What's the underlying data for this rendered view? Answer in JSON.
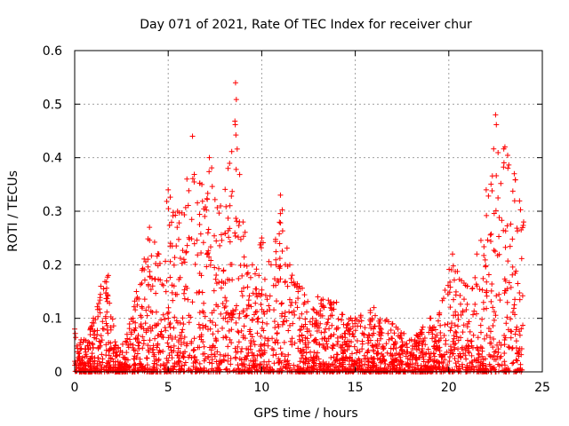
{
  "chart_data": {
    "type": "scatter",
    "title": "Day 071 of 2021, Rate Of TEC Index for receiver chur",
    "xlabel": "GPS time / hours",
    "ylabel": "ROTI / TECUs",
    "xlim": [
      0,
      25
    ],
    "ylim": [
      0,
      0.6
    ],
    "xticks": [
      0,
      5,
      10,
      15,
      20,
      25
    ],
    "yticks": [
      0,
      0.1,
      0.2,
      0.3,
      0.4,
      0.5,
      0.6
    ],
    "xtick_labels": [
      "0",
      "5",
      "10",
      "15",
      "20",
      "25"
    ],
    "ytick_labels": [
      "0",
      "0.1",
      "0.2",
      "0.3",
      "0.4",
      "0.5",
      "0.6"
    ],
    "grid": true,
    "marker": "+",
    "color": "#ff0000",
    "x_range_of_data": [
      0,
      24
    ],
    "envelope": [
      {
        "x": 0.0,
        "max": 0.08
      },
      {
        "x": 0.5,
        "max": 0.06
      },
      {
        "x": 1.0,
        "max": 0.1
      },
      {
        "x": 1.4,
        "max": 0.16
      },
      {
        "x": 1.8,
        "max": 0.18
      },
      {
        "x": 2.2,
        "max": 0.05
      },
      {
        "x": 2.8,
        "max": 0.07
      },
      {
        "x": 3.3,
        "max": 0.15
      },
      {
        "x": 3.6,
        "max": 0.19
      },
      {
        "x": 4.0,
        "max": 0.27
      },
      {
        "x": 4.5,
        "max": 0.22
      },
      {
        "x": 5.0,
        "max": 0.34
      },
      {
        "x": 5.5,
        "max": 0.3
      },
      {
        "x": 6.0,
        "max": 0.36
      },
      {
        "x": 6.3,
        "max": 0.44
      },
      {
        "x": 6.8,
        "max": 0.35
      },
      {
        "x": 7.2,
        "max": 0.4
      },
      {
        "x": 7.8,
        "max": 0.31
      },
      {
        "x": 8.2,
        "max": 0.38
      },
      {
        "x": 8.6,
        "max": 0.54
      },
      {
        "x": 9.0,
        "max": 0.28
      },
      {
        "x": 9.5,
        "max": 0.2
      },
      {
        "x": 10.0,
        "max": 0.25
      },
      {
        "x": 10.5,
        "max": 0.2
      },
      {
        "x": 11.0,
        "max": 0.33
      },
      {
        "x": 11.5,
        "max": 0.2
      },
      {
        "x": 12.0,
        "max": 0.16
      },
      {
        "x": 13.0,
        "max": 0.14
      },
      {
        "x": 14.0,
        "max": 0.13
      },
      {
        "x": 15.0,
        "max": 0.1
      },
      {
        "x": 16.0,
        "max": 0.12
      },
      {
        "x": 17.0,
        "max": 0.09
      },
      {
        "x": 18.0,
        "max": 0.06
      },
      {
        "x": 19.0,
        "max": 0.1
      },
      {
        "x": 19.5,
        "max": 0.11
      },
      {
        "x": 20.2,
        "max": 0.22
      },
      {
        "x": 21.0,
        "max": 0.16
      },
      {
        "x": 21.5,
        "max": 0.22
      },
      {
        "x": 22.0,
        "max": 0.34
      },
      {
        "x": 22.5,
        "max": 0.48
      },
      {
        "x": 23.0,
        "max": 0.42
      },
      {
        "x": 23.5,
        "max": 0.37
      },
      {
        "x": 24.0,
        "max": 0.28
      }
    ]
  }
}
